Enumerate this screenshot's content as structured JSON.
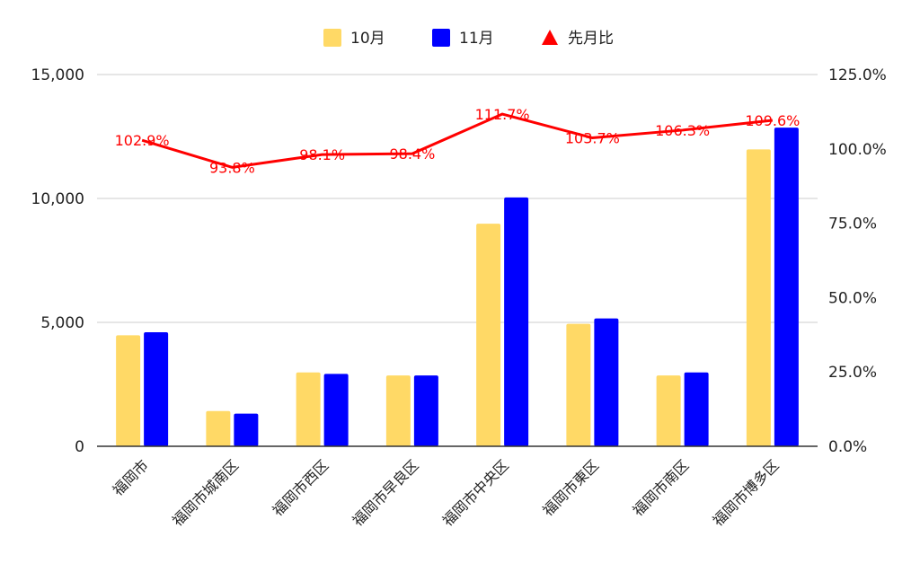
{
  "chart_data": {
    "type": "bar",
    "categories": [
      "福岡市",
      "福岡市城南区",
      "福岡市西区",
      "福岡市早良区",
      "福岡市中央区",
      "福岡市東区",
      "福岡市南区",
      "福岡市博多区"
    ],
    "series": [
      {
        "name": "10月",
        "type": "bar",
        "axis": "left",
        "color": "#FFD966",
        "values": [
          4480,
          1420,
          2980,
          2860,
          8980,
          4940,
          2860,
          11980
        ]
      },
      {
        "name": "11月",
        "type": "bar",
        "axis": "left",
        "color": "#0000FF",
        "values": [
          4600,
          1320,
          2920,
          2860,
          10040,
          5160,
          2980,
          12860
        ]
      },
      {
        "name": "先月比",
        "type": "line",
        "axis": "right",
        "color": "#FF0000",
        "values": [
          102.9,
          93.8,
          98.1,
          98.4,
          111.7,
          103.7,
          106.3,
          109.6
        ],
        "labels": [
          "102.9%",
          "93.8%",
          "98.1%",
          "98.4%",
          "111.7%",
          "103.7%",
          "106.3%",
          "109.6%"
        ]
      }
    ],
    "y_left": {
      "min": 0,
      "max": 15000,
      "ticks": [
        "0",
        "5,000",
        "10,000",
        "15,000"
      ],
      "tick_values": [
        0,
        5000,
        10000,
        15000
      ]
    },
    "y_right": {
      "min": 0,
      "max": 125,
      "ticks": [
        "0.0%",
        "25.0%",
        "50.0%",
        "75.0%",
        "100.0%",
        "125.0%"
      ],
      "tick_values": [
        0,
        25,
        50,
        75,
        100,
        125
      ]
    },
    "grid": true,
    "legend_position": "top-center"
  }
}
